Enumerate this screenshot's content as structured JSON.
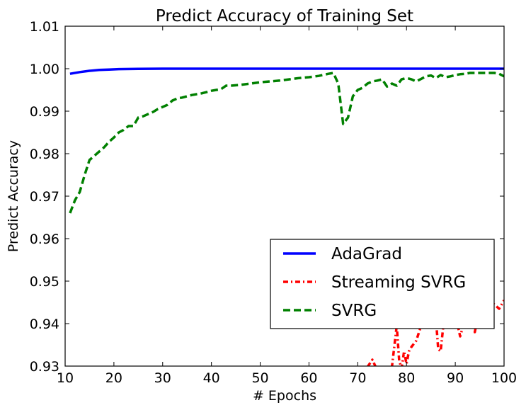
{
  "chart_data": {
    "type": "line",
    "title": "Predict Accuracy of Training Set",
    "xlabel": "# Epochs",
    "ylabel": "Predict Accuracy",
    "xlim": [
      10,
      100
    ],
    "ylim": [
      0.93,
      1.01
    ],
    "x_ticks": [
      10,
      20,
      30,
      40,
      50,
      60,
      70,
      80,
      90,
      100
    ],
    "x_tick_labels": [
      "10",
      "20",
      "30",
      "40",
      "50",
      "60",
      "70",
      "80",
      "90",
      "100"
    ],
    "y_ticks": [
      0.93,
      0.94,
      0.95,
      0.96,
      0.97,
      0.98,
      0.99,
      1.0,
      1.01
    ],
    "y_tick_labels": [
      "0.93",
      "0.94",
      "0.95",
      "0.96",
      "0.97",
      "0.98",
      "0.99",
      "1.00",
      "1.01"
    ],
    "grid": false,
    "legend_position": "lower-right",
    "series": [
      {
        "name": "AdaGrad",
        "color": "#0000ff",
        "style": "solid",
        "x": [
          11,
          13,
          15,
          17,
          19,
          21,
          25,
          30,
          40,
          50,
          60,
          70,
          80,
          90,
          100
        ],
        "y": [
          0.9988,
          0.9992,
          0.9995,
          0.9997,
          0.9998,
          0.9999,
          0.99995,
          1.0,
          1.0,
          1.0,
          1.0,
          1.0,
          1.0,
          1.0,
          1.0
        ]
      },
      {
        "name": "Streaming SVRG",
        "color": "#ff0000",
        "style": "dashdot",
        "x": [
          72,
          73,
          74,
          75,
          76,
          77,
          78,
          78.5,
          79,
          79.5,
          80,
          80.5,
          81,
          82,
          83,
          84,
          85,
          86,
          86.5,
          87,
          87.5,
          88,
          89,
          90,
          91,
          92,
          93,
          94,
          95,
          96,
          97,
          98,
          99,
          100
        ],
        "y": [
          0.9298,
          0.9315,
          0.929,
          0.9295,
          0.929,
          0.9298,
          0.9395,
          0.9312,
          0.9295,
          0.9335,
          0.9305,
          0.9335,
          0.9345,
          0.936,
          0.9395,
          0.941,
          0.9425,
          0.9415,
          0.934,
          0.9335,
          0.939,
          0.9415,
          0.944,
          0.942,
          0.937,
          0.941,
          0.944,
          0.938,
          0.944,
          0.9455,
          0.945,
          0.9445,
          0.9435,
          0.9455
        ]
      },
      {
        "name": "SVRG",
        "color": "#008000",
        "style": "dashed",
        "x": [
          11,
          12,
          13,
          14,
          15,
          16,
          17,
          18,
          19,
          20,
          21,
          22,
          23,
          24,
          25,
          26,
          28,
          29,
          30,
          31,
          32,
          33,
          34,
          35,
          36,
          38,
          40,
          41,
          42,
          43,
          44,
          46,
          48,
          50,
          52,
          54,
          56,
          58,
          60,
          62,
          64,
          65,
          66,
          67,
          68,
          69,
          70,
          71,
          72,
          73,
          74,
          75,
          76,
          77,
          78,
          79,
          80,
          81,
          82,
          83,
          84,
          85,
          86,
          87,
          88,
          89,
          90,
          91,
          92,
          93,
          94,
          95,
          96,
          97,
          98,
          99,
          100
        ],
        "y": [
          0.966,
          0.969,
          0.971,
          0.975,
          0.9785,
          0.9795,
          0.9805,
          0.9815,
          0.9828,
          0.9838,
          0.985,
          0.9856,
          0.9865,
          0.9865,
          0.9885,
          0.9888,
          0.9898,
          0.9905,
          0.991,
          0.9915,
          0.9925,
          0.993,
          0.9932,
          0.9935,
          0.9938,
          0.9942,
          0.9948,
          0.995,
          0.9952,
          0.996,
          0.996,
          0.9962,
          0.9965,
          0.9968,
          0.997,
          0.9972,
          0.9975,
          0.9978,
          0.998,
          0.9983,
          0.9988,
          0.999,
          0.9965,
          0.987,
          0.9885,
          0.9935,
          0.995,
          0.9955,
          0.9965,
          0.997,
          0.9972,
          0.9975,
          0.9958,
          0.9965,
          0.996,
          0.9975,
          0.9978,
          0.9975,
          0.997,
          0.9976,
          0.9982,
          0.9984,
          0.9978,
          0.9985,
          0.998,
          0.9982,
          0.9985,
          0.9987,
          0.9988,
          0.999,
          0.999,
          0.999,
          0.999,
          0.999,
          0.999,
          0.9988,
          0.9982
        ]
      }
    ]
  }
}
